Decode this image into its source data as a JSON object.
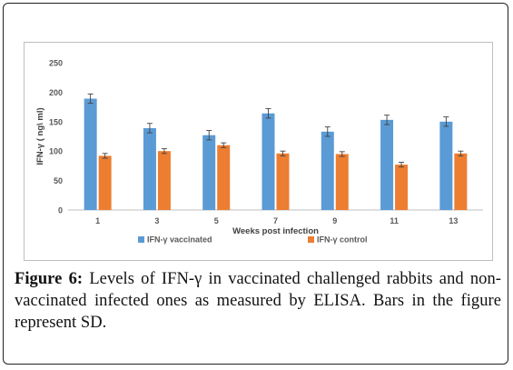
{
  "chart_data": {
    "type": "bar",
    "title": "",
    "xlabel": "Weeks post infection",
    "ylabel": "IFN-γ ( ng\\ ml)",
    "ylim": [
      0,
      250
    ],
    "yticks": [
      0,
      50,
      100,
      150,
      200,
      250
    ],
    "categories": [
      "1",
      "3",
      "5",
      "7",
      "9",
      "11",
      "13"
    ],
    "series": [
      {
        "name": "IFN-γ vaccinated",
        "color": "#5b9bd5",
        "values": [
          189,
          139,
          127,
          164,
          133,
          153,
          150
        ],
        "errors": [
          8,
          8,
          8,
          8,
          8,
          8,
          8
        ]
      },
      {
        "name": "IFN-γ control",
        "color": "#ed7d31",
        "values": [
          92,
          100,
          110,
          96,
          95,
          77,
          96
        ],
        "errors": [
          4,
          4,
          4,
          4,
          4,
          4,
          4
        ]
      }
    ],
    "grid": false,
    "legend_position": "bottom"
  },
  "caption": {
    "label": "Figure 6:",
    "text": " Levels of IFN-γ in vaccinated challenged rabbits and non-vaccinated infected ones as measured by ELISA. Bars in the figure represent SD."
  }
}
